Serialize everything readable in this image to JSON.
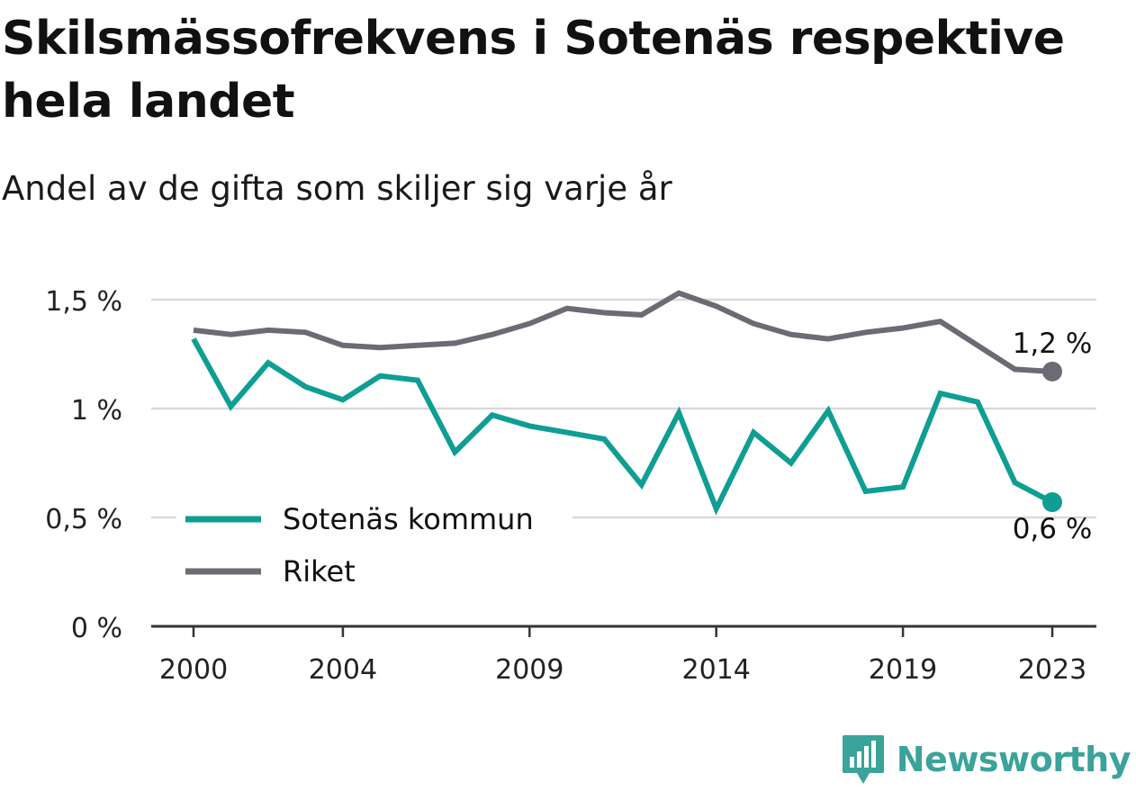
{
  "title": "Skilsmässofrekvens i Sotenäs respektive hela landet",
  "subtitle": "Andel av de gifta som skiljer sig varje år",
  "brand": "Newsworthy",
  "colors": {
    "sotenas": "#0f9e93",
    "riket": "#6b6b73",
    "grid": "#d9d9d9",
    "axis": "#333333"
  },
  "chart_data": {
    "type": "line",
    "x": [
      2000,
      2001,
      2002,
      2003,
      2004,
      2005,
      2006,
      2007,
      2008,
      2009,
      2010,
      2011,
      2012,
      2013,
      2014,
      2015,
      2016,
      2017,
      2018,
      2019,
      2020,
      2021,
      2022,
      2023
    ],
    "x_ticks": [
      2000,
      2004,
      2009,
      2014,
      2019,
      2023
    ],
    "x_tick_labels": [
      "2000",
      "2004",
      "2009",
      "2014",
      "2019",
      "2023"
    ],
    "y_ticks": [
      0,
      0.5,
      1,
      1.5
    ],
    "y_tick_labels": [
      "0 %",
      "0,5 %",
      "1 %",
      "1,5 %"
    ],
    "ylim": [
      0,
      1.5
    ],
    "grid": true,
    "legend_position": "bottom-left",
    "series": [
      {
        "name": "Sotenäs kommun",
        "color": "#0f9e93",
        "values": [
          1.32,
          1.01,
          1.21,
          1.1,
          1.04,
          1.15,
          1.13,
          0.8,
          0.97,
          0.92,
          0.89,
          0.86,
          0.65,
          0.98,
          0.54,
          0.89,
          0.75,
          0.99,
          0.62,
          0.64,
          1.07,
          1.03,
          0.66,
          0.57
        ],
        "end_label": "0,6 %"
      },
      {
        "name": "Riket",
        "color": "#6b6b73",
        "values": [
          1.36,
          1.34,
          1.36,
          1.35,
          1.29,
          1.28,
          1.29,
          1.3,
          1.34,
          1.39,
          1.46,
          1.44,
          1.43,
          1.53,
          1.47,
          1.39,
          1.34,
          1.32,
          1.35,
          1.37,
          1.4,
          1.29,
          1.18,
          1.17
        ],
        "end_label": "1,2 %"
      }
    ]
  }
}
